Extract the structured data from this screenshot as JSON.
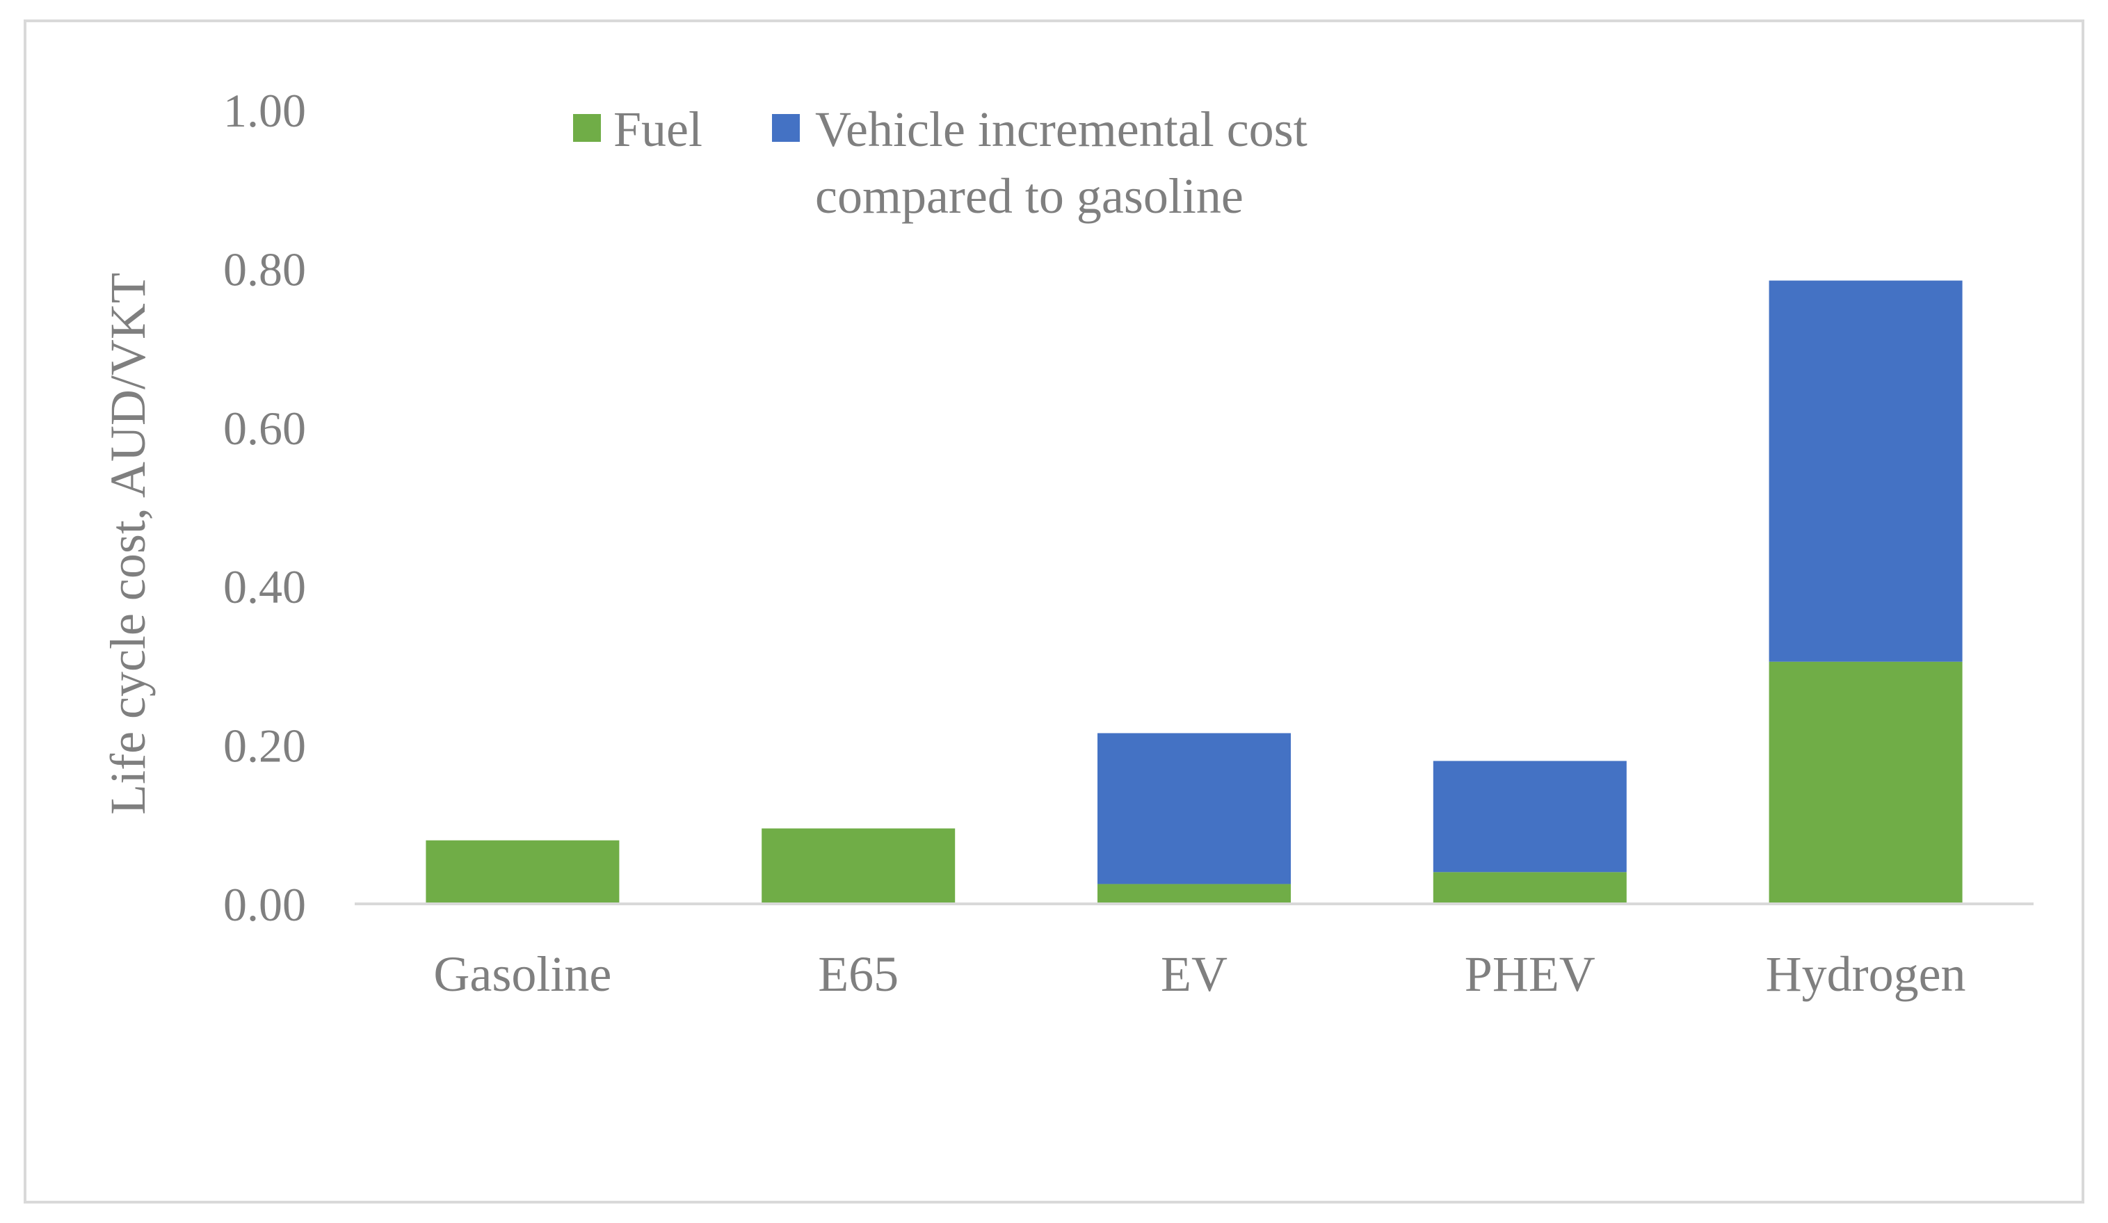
{
  "chart_data": {
    "type": "bar",
    "stacked": true,
    "title": "",
    "xlabel": "",
    "ylabel": "Life cycle cost, AUD/VKT",
    "ylim": [
      0,
      1.0
    ],
    "y_ticks": [
      "0.00",
      "0.20",
      "0.40",
      "0.60",
      "0.80",
      "1.00"
    ],
    "y_tick_values": [
      0,
      0.2,
      0.4,
      0.6,
      0.8,
      1.0
    ],
    "gridlines": false,
    "legend_position": "top",
    "categories": [
      "Gasoline",
      "E65",
      "EV",
      "PHEV",
      "Hydrogen"
    ],
    "series": [
      {
        "name": "Fuel",
        "color": "#70ad47",
        "values": [
          0.08,
          0.095,
          0.025,
          0.04,
          0.305
        ]
      },
      {
        "name": "Vehicle incremental cost compared to gasoline",
        "legend_lines": [
          "Vehicle incremental cost",
          "compared to gasoline"
        ],
        "color": "#4472c4",
        "values": [
          0,
          0,
          0.19,
          0.14,
          0.48
        ]
      }
    ]
  }
}
